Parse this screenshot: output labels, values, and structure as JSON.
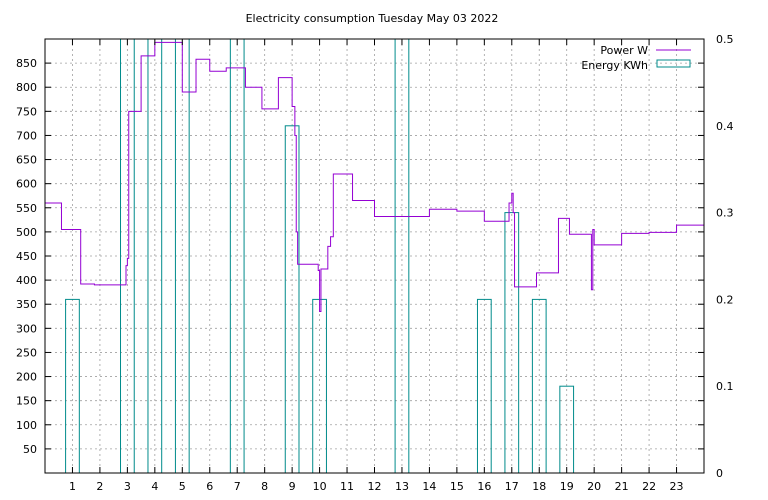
{
  "chart_data": {
    "type": "line",
    "title": "Electricity consumption Tuesday May 03 2022",
    "xlabel": "",
    "ylabel": "",
    "y2label": "",
    "xlim": [
      0,
      24
    ],
    "ylim": [
      0,
      900
    ],
    "y2lim": [
      0,
      0.5
    ],
    "x_ticks": [
      1,
      2,
      3,
      4,
      5,
      6,
      7,
      8,
      9,
      10,
      11,
      12,
      13,
      14,
      15,
      16,
      17,
      18,
      19,
      20,
      21,
      22,
      23
    ],
    "y_ticks": [
      50,
      100,
      150,
      200,
      250,
      300,
      350,
      400,
      450,
      500,
      550,
      600,
      650,
      700,
      750,
      800,
      850
    ],
    "y2_ticks": [
      "0",
      "0.1",
      "0.2",
      "0.3",
      "0.4",
      "0.5"
    ],
    "y2_tick_values": [
      0,
      0.1,
      0.2,
      0.3,
      0.4,
      0.5
    ],
    "grid": true,
    "legend_position": "top-right",
    "series": [
      {
        "name": "Power W",
        "type": "step",
        "axis": "y",
        "color": "#9400d3",
        "x": [
          0,
          0.6,
          1.3,
          1.8,
          2.95,
          3.0,
          3.05,
          3.1,
          3.5,
          3.6,
          4.0,
          4.2,
          4.5,
          4.7,
          5.0,
          5.2,
          5.5,
          5.8,
          6.0,
          6.3,
          6.6,
          7.0,
          7.3,
          7.6,
          7.9,
          8.3,
          8.5,
          8.7,
          9.0,
          9.1,
          9.15,
          9.2,
          9.5,
          9.8,
          9.95,
          10.0,
          10.05,
          10.2,
          10.3,
          10.4,
          10.5,
          10.7,
          11.0,
          11.2,
          11.5,
          12.0,
          12.3,
          13.0,
          13.5,
          14.0,
          14.5,
          15.0,
          15.5,
          16.0,
          16.5,
          16.9,
          17.0,
          17.05,
          17.1,
          17.5,
          17.9,
          18.3,
          18.7,
          18.8,
          19.1,
          19.5,
          19.9,
          19.95,
          20.0,
          20.5,
          21.0,
          21.5,
          22.0,
          22.5,
          23.0,
          24.0
        ],
        "values": [
          560,
          505,
          392,
          390,
          430,
          445,
          750,
          750,
          865,
          865,
          893,
          893,
          893,
          893,
          790,
          790,
          858,
          858,
          833,
          833,
          840,
          840,
          800,
          800,
          755,
          755,
          820,
          820,
          760,
          700,
          500,
          433,
          433,
          433,
          420,
          335,
          423,
          423,
          470,
          490,
          620,
          620,
          620,
          565,
          565,
          532,
          532,
          532,
          532,
          547,
          547,
          543,
          543,
          522,
          522,
          560,
          580,
          540,
          386,
          386,
          415,
          415,
          528,
          528,
          495,
          495,
          380,
          505,
          473,
          473,
          497,
          497,
          499,
          499,
          514,
          514
        ]
      },
      {
        "name": "Energy KWh",
        "type": "impulse-bar",
        "axis": "y2",
        "color": "#008b8b",
        "bars": [
          {
            "x": 1.0,
            "value": 0.2
          },
          {
            "x": 3.0,
            "value": 0.5
          },
          {
            "x": 4.0,
            "value": 0.5
          },
          {
            "x": 5.0,
            "value": 0.5
          },
          {
            "x": 7.0,
            "value": 0.5
          },
          {
            "x": 9.0,
            "value": 0.4
          },
          {
            "x": 10.0,
            "value": 0.2
          },
          {
            "x": 13.0,
            "value": 0.5
          },
          {
            "x": 16.0,
            "value": 0.2
          },
          {
            "x": 17.0,
            "value": 0.3
          },
          {
            "x": 18.0,
            "value": 0.2
          },
          {
            "x": 19.0,
            "value": 0.1
          }
        ]
      }
    ]
  }
}
